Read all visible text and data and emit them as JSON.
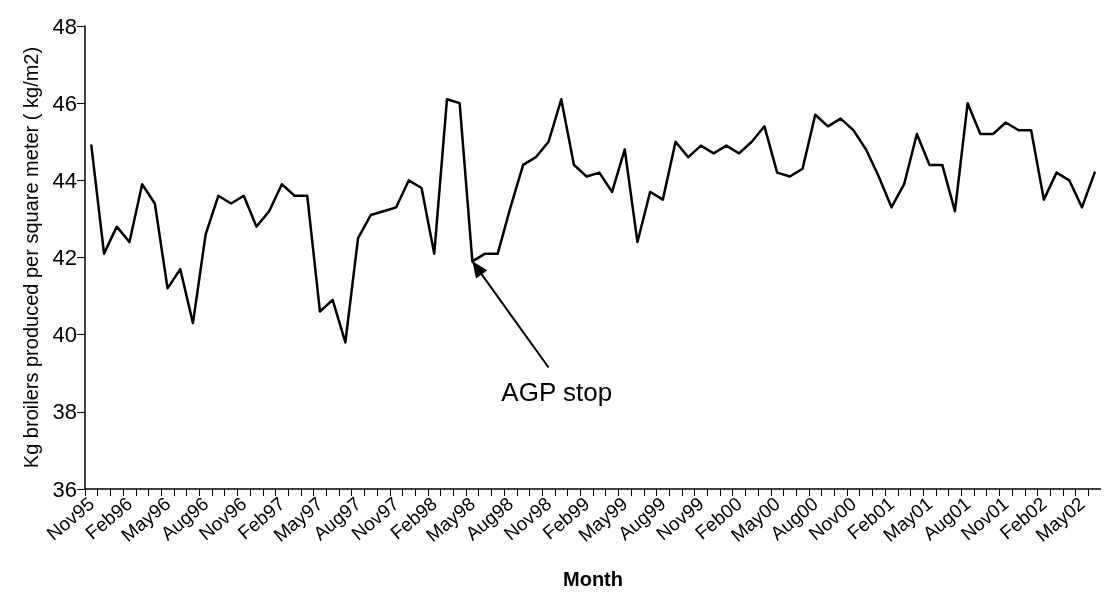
{
  "chart_data": {
    "type": "line",
    "xlabel": "Month",
    "ylabel": "Kg broilers produced per square meter ( kg/m2)",
    "categories": [
      "Nov95",
      null,
      null,
      "Feb96",
      null,
      null,
      "May96",
      null,
      null,
      "Aug96",
      null,
      null,
      "Nov96",
      null,
      null,
      "Feb97",
      null,
      null,
      "May97",
      null,
      null,
      "Aug97",
      null,
      null,
      "Nov97",
      null,
      null,
      "Feb98",
      null,
      null,
      "May98",
      null,
      null,
      "Aug98",
      null,
      null,
      "Nov98",
      null,
      null,
      "Feb99",
      null,
      null,
      "May99",
      null,
      null,
      "Aug99",
      null,
      null,
      "Nov99",
      null,
      null,
      "Feb00",
      null,
      null,
      "May00",
      null,
      null,
      "Aug00",
      null,
      null,
      "Nov00",
      null,
      null,
      "Feb01",
      null,
      null,
      "May01",
      null,
      null,
      "Aug01",
      null,
      null,
      "Nov01",
      null,
      null,
      "Feb02",
      null,
      null,
      "May02",
      null
    ],
    "series": [
      {
        "color": "#000000",
        "values": [
          44.9,
          42.1,
          42.8,
          42.4,
          43.9,
          43.4,
          41.2,
          41.7,
          40.3,
          42.6,
          43.6,
          43.4,
          43.6,
          42.8,
          43.2,
          43.9,
          43.6,
          43.6,
          40.6,
          40.9,
          39.8,
          42.5,
          43.1,
          43.2,
          43.3,
          44.0,
          43.8,
          42.1,
          46.1,
          46.0,
          41.9,
          42.1,
          42.1,
          43.3,
          44.4,
          44.6,
          45.0,
          46.1,
          44.4,
          44.1,
          44.2,
          43.7,
          44.8,
          42.4,
          43.7,
          43.5,
          45.0,
          44.6,
          44.9,
          44.7,
          44.9,
          44.7,
          45.0,
          45.4,
          44.2,
          44.1,
          44.3,
          45.7,
          45.4,
          45.6,
          45.3,
          44.8,
          44.1,
          43.3,
          43.9,
          45.2,
          44.4,
          44.4,
          43.2,
          46.0,
          45.2,
          45.2,
          45.5,
          45.3,
          45.3,
          43.5,
          44.2,
          44.0,
          43.3,
          44.2
        ]
      }
    ],
    "ylim": [
      36,
      48
    ],
    "yticks": [
      36,
      38,
      40,
      42,
      44,
      46,
      48
    ],
    "grid": false,
    "marker": "none",
    "line_style": "solid",
    "annotations": [
      {
        "text": "AGP stop",
        "x": "May98",
        "y": 41.9
      }
    ]
  }
}
